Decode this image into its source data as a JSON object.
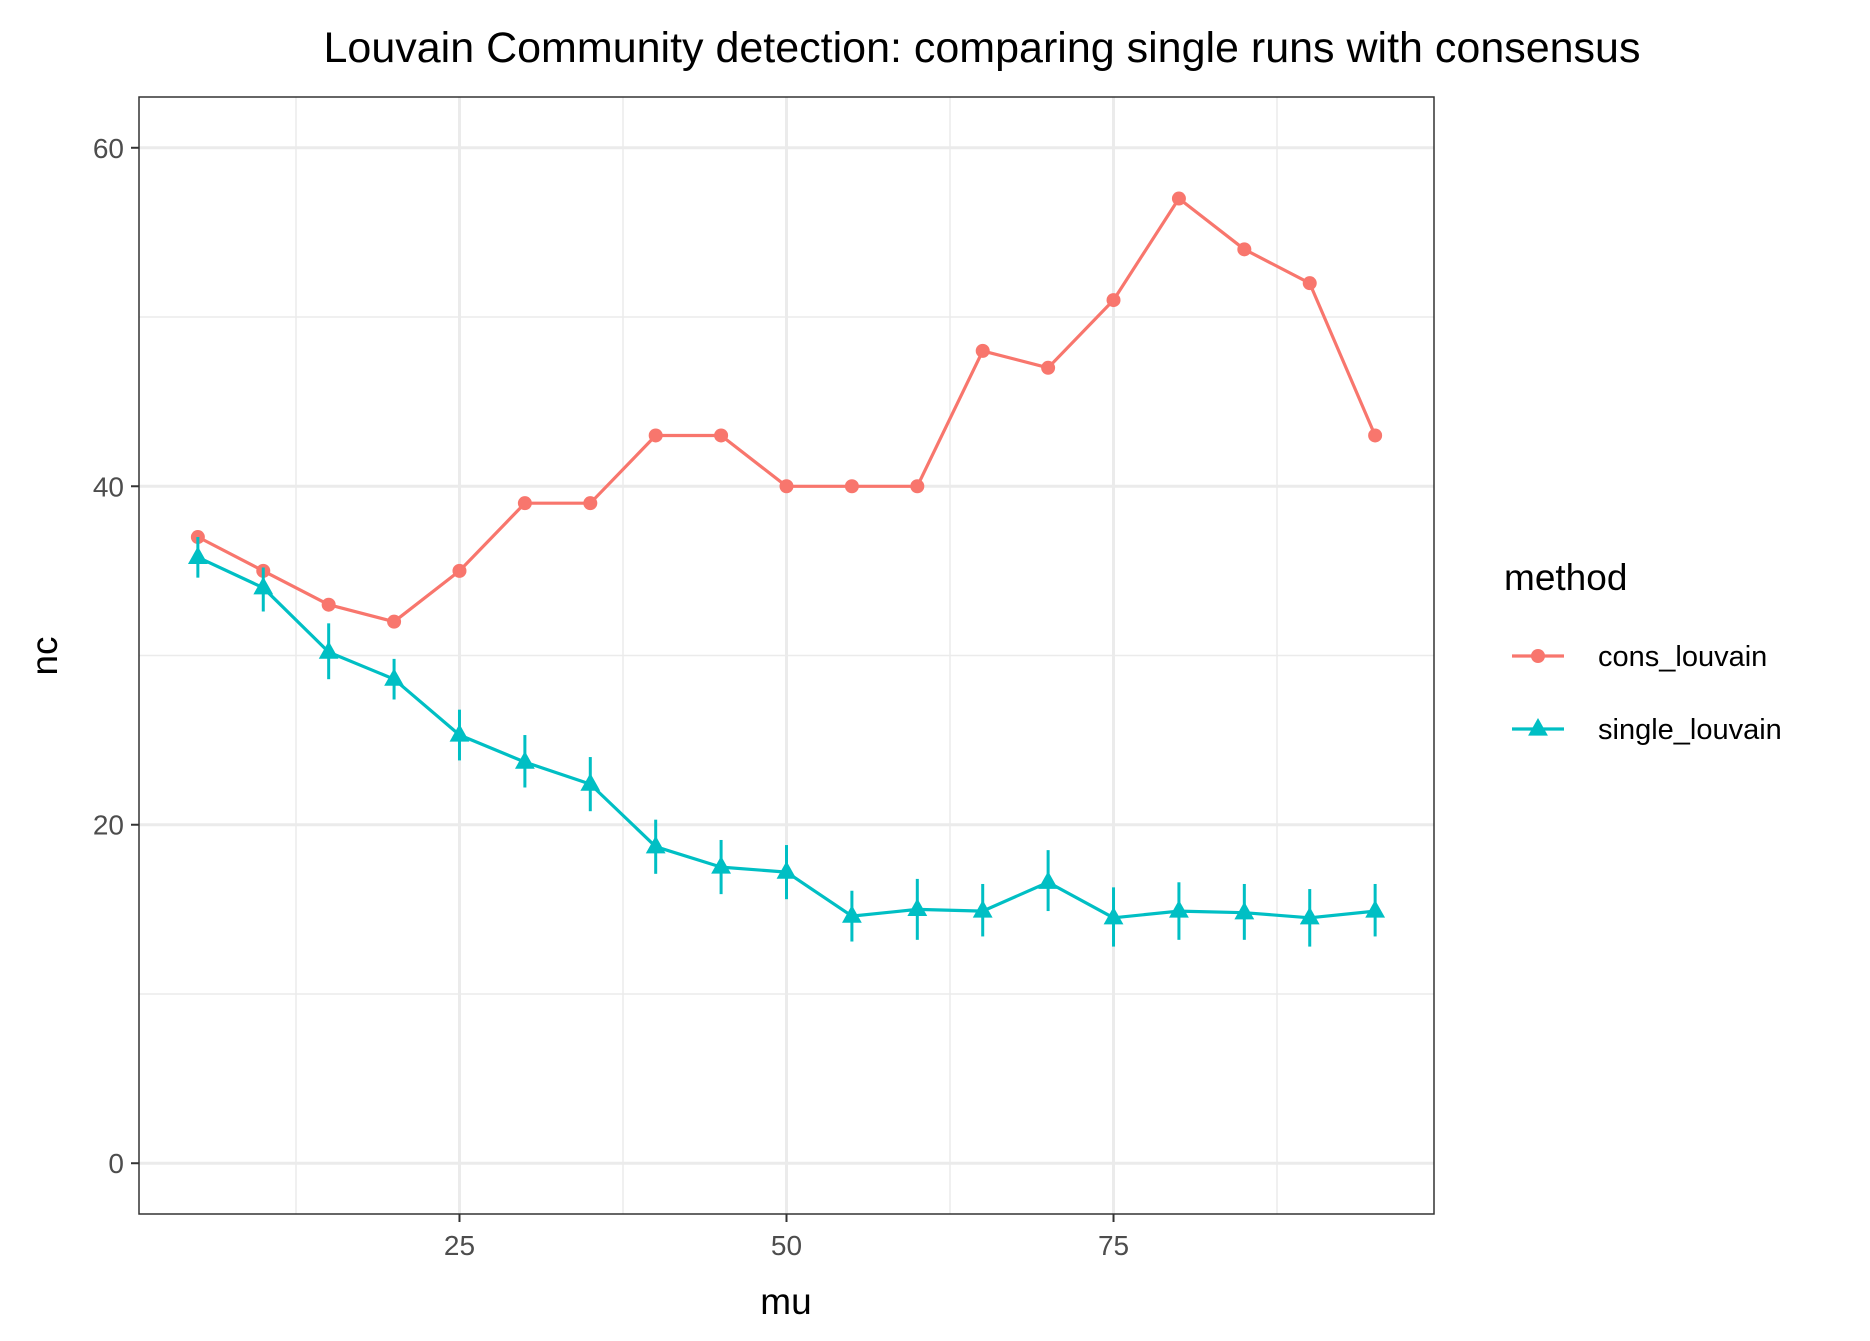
{
  "chart_data": {
    "type": "line",
    "title": "Louvain Community detection: comparing single runs with consensus",
    "xlabel": "mu",
    "ylabel": "nc",
    "xlim": [
      0.5,
      99.5
    ],
    "ylim": [
      -3,
      63
    ],
    "x_ticks": [
      25,
      50,
      75
    ],
    "x_tick_labels": [
      "25",
      "50",
      "75"
    ],
    "y_ticks": [
      0,
      20,
      40,
      60
    ],
    "y_tick_labels": [
      "0",
      "20",
      "40",
      "60"
    ],
    "grid": true,
    "legend": {
      "title": "method",
      "position": "right"
    },
    "x": [
      5,
      10,
      15,
      20,
      25,
      30,
      35,
      40,
      45,
      50,
      55,
      60,
      65,
      70,
      75,
      80,
      85,
      90,
      95
    ],
    "series": [
      {
        "name": "cons_louvain",
        "color": "#F8766D",
        "marker": "circle",
        "values": [
          37,
          35,
          33,
          32,
          35,
          39,
          39,
          43,
          43,
          40,
          40,
          40,
          48,
          47,
          51,
          57,
          54,
          52,
          43
        ]
      },
      {
        "name": "single_louvain",
        "color": "#00BFC4",
        "marker": "triangle",
        "values": [
          35.8,
          34.0,
          30.2,
          28.6,
          25.3,
          23.7,
          22.4,
          18.7,
          17.5,
          17.2,
          14.6,
          15.0,
          14.9,
          16.6,
          14.5,
          14.9,
          14.8,
          14.5,
          14.9
        ],
        "error_low": [
          34.6,
          32.6,
          28.6,
          27.4,
          23.8,
          22.2,
          20.8,
          17.1,
          15.9,
          15.6,
          13.1,
          13.2,
          13.4,
          14.9,
          12.8,
          13.2,
          13.2,
          12.8,
          13.4
        ],
        "error_high": [
          37.0,
          35.2,
          31.9,
          29.8,
          26.8,
          25.3,
          24.0,
          20.3,
          19.1,
          18.8,
          16.1,
          16.8,
          16.5,
          18.5,
          16.3,
          16.6,
          16.5,
          16.2,
          16.5
        ]
      }
    ]
  }
}
